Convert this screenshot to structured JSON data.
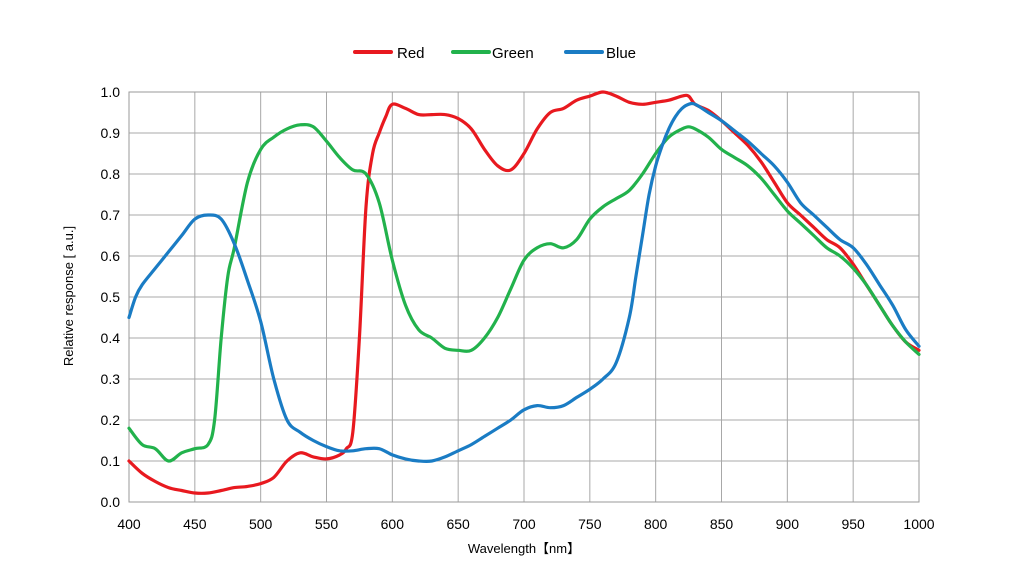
{
  "chart_data": {
    "type": "line",
    "xlabel": "Wavelength【nm】",
    "ylabel": "Relative response [ a.u.]",
    "xlim": [
      400,
      1000
    ],
    "ylim": [
      0.0,
      1.0
    ],
    "xticks": [
      "400",
      "450",
      "500",
      "550",
      "600",
      "650",
      "700",
      "750",
      "800",
      "850",
      "900",
      "950",
      "1000"
    ],
    "yticks": [
      "0.0",
      "0.1",
      "0.2",
      "0.3",
      "0.4",
      "0.5",
      "0.6",
      "0.7",
      "0.8",
      "0.9",
      "1.0"
    ],
    "grid": true,
    "legend_position": "top-center",
    "series": [
      {
        "name": "Red",
        "color": "#e8191f",
        "x": [
          400,
          410,
          420,
          430,
          440,
          450,
          460,
          470,
          480,
          490,
          500,
          510,
          520,
          530,
          540,
          550,
          560,
          565,
          570,
          575,
          580,
          585,
          590,
          595,
          600,
          610,
          620,
          630,
          640,
          650,
          660,
          670,
          680,
          690,
          700,
          710,
          720,
          730,
          740,
          750,
          760,
          770,
          780,
          790,
          800,
          810,
          820,
          825,
          830,
          840,
          850,
          860,
          870,
          880,
          890,
          900,
          910,
          920,
          930,
          940,
          950,
          960,
          970,
          980,
          990,
          1000
        ],
        "y": [
          0.1,
          0.07,
          0.05,
          0.035,
          0.028,
          0.022,
          0.022,
          0.028,
          0.035,
          0.038,
          0.045,
          0.06,
          0.1,
          0.12,
          0.11,
          0.105,
          0.115,
          0.13,
          0.17,
          0.4,
          0.72,
          0.85,
          0.9,
          0.94,
          0.97,
          0.96,
          0.945,
          0.945,
          0.945,
          0.935,
          0.91,
          0.86,
          0.82,
          0.81,
          0.85,
          0.91,
          0.95,
          0.96,
          0.98,
          0.99,
          1.0,
          0.99,
          0.975,
          0.97,
          0.975,
          0.98,
          0.99,
          0.99,
          0.97,
          0.955,
          0.93,
          0.9,
          0.87,
          0.83,
          0.78,
          0.73,
          0.7,
          0.67,
          0.64,
          0.62,
          0.58,
          0.53,
          0.48,
          0.43,
          0.39,
          0.37
        ]
      },
      {
        "name": "Green",
        "color": "#22b24c",
        "x": [
          400,
          410,
          420,
          430,
          440,
          450,
          460,
          465,
          470,
          475,
          480,
          490,
          500,
          510,
          520,
          530,
          540,
          550,
          560,
          570,
          580,
          590,
          600,
          610,
          620,
          630,
          640,
          650,
          660,
          670,
          680,
          690,
          700,
          710,
          720,
          730,
          740,
          750,
          760,
          770,
          780,
          790,
          800,
          810,
          820,
          825,
          830,
          840,
          850,
          860,
          870,
          880,
          890,
          900,
          910,
          920,
          930,
          940,
          950,
          960,
          970,
          980,
          990,
          1000
        ],
        "y": [
          0.18,
          0.14,
          0.13,
          0.1,
          0.12,
          0.13,
          0.14,
          0.2,
          0.4,
          0.55,
          0.62,
          0.78,
          0.86,
          0.89,
          0.91,
          0.92,
          0.915,
          0.88,
          0.84,
          0.81,
          0.8,
          0.73,
          0.59,
          0.48,
          0.42,
          0.4,
          0.375,
          0.37,
          0.37,
          0.4,
          0.45,
          0.52,
          0.59,
          0.62,
          0.63,
          0.62,
          0.64,
          0.69,
          0.72,
          0.74,
          0.76,
          0.8,
          0.85,
          0.89,
          0.91,
          0.915,
          0.91,
          0.89,
          0.86,
          0.84,
          0.82,
          0.79,
          0.75,
          0.71,
          0.68,
          0.65,
          0.62,
          0.6,
          0.57,
          0.53,
          0.48,
          0.43,
          0.39,
          0.36
        ]
      },
      {
        "name": "Blue",
        "color": "#1a7cc4",
        "x": [
          400,
          405,
          410,
          420,
          430,
          440,
          450,
          460,
          470,
          480,
          490,
          500,
          510,
          520,
          530,
          540,
          550,
          560,
          570,
          580,
          590,
          600,
          610,
          620,
          630,
          640,
          650,
          660,
          670,
          680,
          690,
          700,
          710,
          720,
          730,
          740,
          750,
          760,
          770,
          780,
          785,
          790,
          795,
          800,
          805,
          810,
          815,
          820,
          825,
          830,
          840,
          850,
          860,
          870,
          880,
          890,
          900,
          910,
          920,
          930,
          940,
          950,
          960,
          970,
          980,
          990,
          1000
        ],
        "y": [
          0.45,
          0.5,
          0.53,
          0.57,
          0.61,
          0.65,
          0.69,
          0.7,
          0.69,
          0.63,
          0.54,
          0.44,
          0.3,
          0.2,
          0.17,
          0.15,
          0.135,
          0.125,
          0.125,
          0.13,
          0.13,
          0.115,
          0.105,
          0.1,
          0.1,
          0.11,
          0.125,
          0.14,
          0.16,
          0.18,
          0.2,
          0.225,
          0.235,
          0.23,
          0.235,
          0.255,
          0.275,
          0.3,
          0.34,
          0.45,
          0.55,
          0.65,
          0.75,
          0.82,
          0.87,
          0.91,
          0.94,
          0.96,
          0.97,
          0.97,
          0.95,
          0.93,
          0.905,
          0.88,
          0.85,
          0.82,
          0.78,
          0.73,
          0.7,
          0.67,
          0.64,
          0.62,
          0.58,
          0.53,
          0.48,
          0.42,
          0.38
        ]
      }
    ]
  }
}
